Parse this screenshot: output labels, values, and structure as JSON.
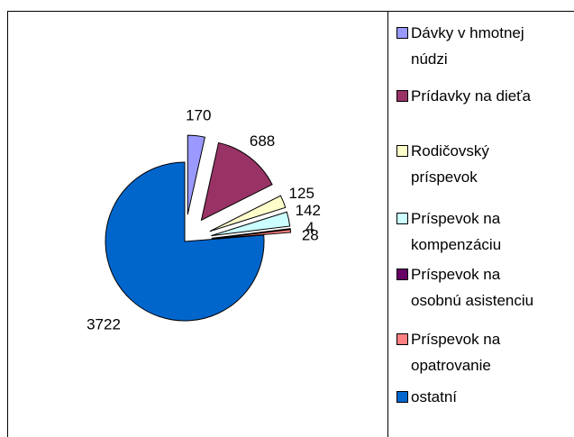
{
  "chart_data": {
    "type": "pie",
    "categories": [
      "Dávky v hmotnej núdzi",
      "Prídavky na dieťa",
      "Rodičovský príspevok",
      "Príspevok na kompenzáciu",
      "Príspevok na osobnú asistenciu",
      "Príspevok na opatrovanie",
      "ostatní"
    ],
    "values": [
      170,
      688,
      125,
      142,
      4,
      28,
      3722
    ],
    "colors": [
      "#9999ff",
      "#993366",
      "#ffffcc",
      "#ccffff",
      "#660066",
      "#ff8080",
      "#0066cc"
    ],
    "legend": "right"
  }
}
